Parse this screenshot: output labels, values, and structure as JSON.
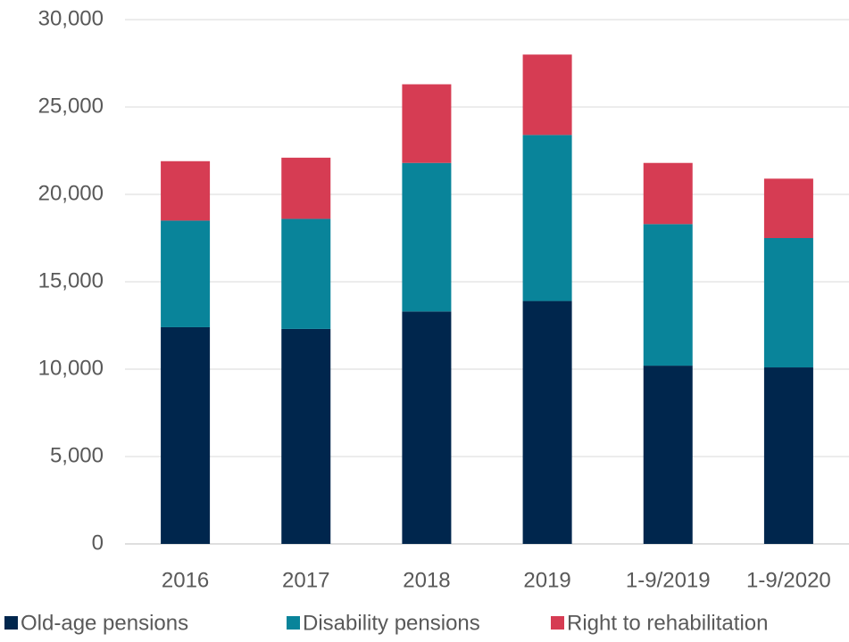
{
  "chart_data": {
    "type": "bar",
    "stacked": true,
    "categories": [
      "2016",
      "2017",
      "2018",
      "2019",
      "1-9/2019",
      "1-9/2020"
    ],
    "series": [
      {
        "name": "Old-age pensions",
        "color": "#00264d",
        "values": [
          12400,
          12300,
          13300,
          13900,
          10200,
          10100
        ]
      },
      {
        "name": "Disability pensions",
        "color": "#09849a",
        "values": [
          6100,
          6300,
          8500,
          9500,
          8100,
          7400
        ]
      },
      {
        "name": "Right to rehabilitation",
        "color": "#d63c53",
        "values": [
          3400,
          3500,
          4500,
          4600,
          3500,
          3400
        ]
      }
    ],
    "ylim": [
      0,
      30000
    ],
    "yticks": [
      0,
      {
        "value": 5000,
        "label": "5,000"
      },
      {
        "value": 10000,
        "label": "10,000"
      },
      {
        "value": 15000,
        "label": "15,000"
      },
      {
        "value": 20000,
        "label": "20,000"
      },
      {
        "value": 25000,
        "label": "25,000"
      },
      {
        "value": 30000,
        "label": "30,000"
      }
    ],
    "grid": true,
    "legend": "bottom"
  }
}
